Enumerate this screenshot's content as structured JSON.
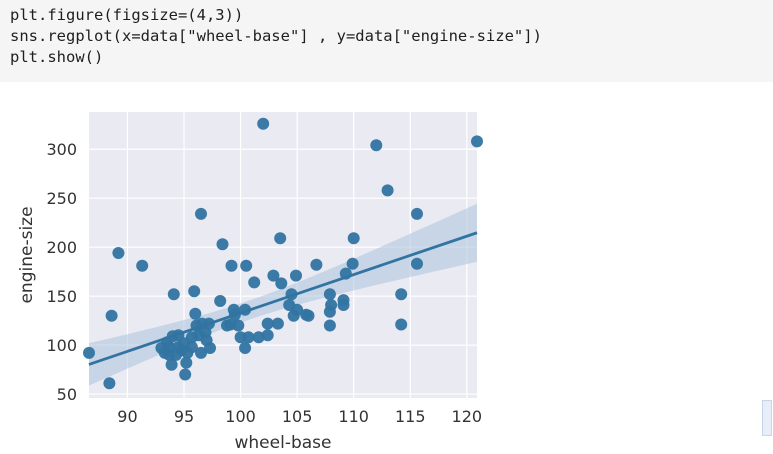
{
  "code_cell": {
    "lines": [
      "plt.figure(figsize=(4,3))",
      "sns.regplot(x=data[\"wheel-base\"] , y=data[\"engine-size\"])",
      "plt.show()"
    ]
  },
  "chart_data": {
    "type": "scatter",
    "title": "",
    "xlabel": "wheel-base",
    "ylabel": "engine-size",
    "xlim": [
      86.6,
      120.9
    ],
    "ylim": [
      46,
      338
    ],
    "xticks": [
      "90",
      "95",
      "100",
      "105",
      "110",
      "115",
      "120"
    ],
    "yticks": [
      "50",
      "100",
      "150",
      "200",
      "250",
      "300"
    ],
    "grid": true,
    "background": "#eaeaf2",
    "point_color": "#3274a1",
    "line_color": "#3274a1",
    "band_color": "#a9c3dc",
    "regression": {
      "slope": 3.92,
      "intercept": -259.2
    },
    "points": [
      [
        86.6,
        92
      ],
      [
        88.4,
        61
      ],
      [
        88.6,
        130
      ],
      [
        89.2,
        194
      ],
      [
        91.3,
        181
      ],
      [
        93.0,
        97
      ],
      [
        93.3,
        92
      ],
      [
        93.5,
        103
      ],
      [
        93.7,
        90
      ],
      [
        93.7,
        98
      ],
      [
        93.9,
        80
      ],
      [
        94.0,
        109
      ],
      [
        94.1,
        152
      ],
      [
        94.3,
        90
      ],
      [
        94.5,
        98
      ],
      [
        94.5,
        110
      ],
      [
        94.8,
        95
      ],
      [
        95.0,
        102
      ],
      [
        95.1,
        70
      ],
      [
        95.2,
        82
      ],
      [
        95.3,
        92
      ],
      [
        95.7,
        98
      ],
      [
        95.7,
        108
      ],
      [
        95.9,
        155
      ],
      [
        96.0,
        132
      ],
      [
        96.1,
        120
      ],
      [
        96.3,
        110
      ],
      [
        96.5,
        92
      ],
      [
        96.5,
        234
      ],
      [
        96.6,
        122
      ],
      [
        96.9,
        113
      ],
      [
        97.0,
        105
      ],
      [
        97.2,
        122
      ],
      [
        97.3,
        97
      ],
      [
        98.2,
        145
      ],
      [
        98.4,
        203
      ],
      [
        98.8,
        120
      ],
      [
        99.1,
        121
      ],
      [
        99.2,
        181
      ],
      [
        99.4,
        136
      ],
      [
        99.5,
        131
      ],
      [
        99.8,
        120
      ],
      [
        100.0,
        108
      ],
      [
        100.4,
        136
      ],
      [
        100.4,
        97
      ],
      [
        100.5,
        181
      ],
      [
        100.7,
        108
      ],
      [
        101.2,
        164
      ],
      [
        101.6,
        108
      ],
      [
        102.0,
        326
      ],
      [
        102.4,
        122
      ],
      [
        102.4,
        110
      ],
      [
        102.9,
        171
      ],
      [
        103.3,
        122
      ],
      [
        103.5,
        209
      ],
      [
        103.6,
        163
      ],
      [
        104.3,
        141
      ],
      [
        104.5,
        152
      ],
      [
        104.7,
        130
      ],
      [
        104.9,
        171
      ],
      [
        105.0,
        136
      ],
      [
        105.8,
        131
      ],
      [
        106.0,
        130
      ],
      [
        106.7,
        182
      ],
      [
        107.9,
        120
      ],
      [
        107.9,
        134
      ],
      [
        107.9,
        152
      ],
      [
        108.0,
        141
      ],
      [
        109.1,
        141
      ],
      [
        109.1,
        146
      ],
      [
        109.3,
        173
      ],
      [
        109.9,
        183
      ],
      [
        110.0,
        209
      ],
      [
        112.0,
        304
      ],
      [
        113.0,
        258
      ],
      [
        114.2,
        152
      ],
      [
        114.2,
        121
      ],
      [
        115.6,
        234
      ],
      [
        115.6,
        183
      ],
      [
        120.9,
        308
      ]
    ]
  }
}
